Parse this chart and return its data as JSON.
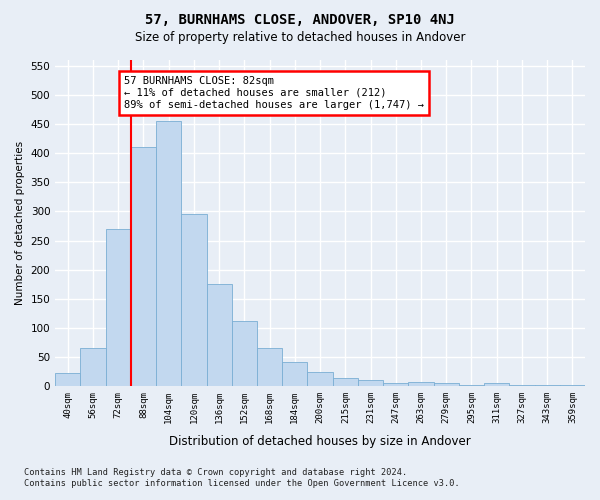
{
  "title": "57, BURNHAMS CLOSE, ANDOVER, SP10 4NJ",
  "subtitle": "Size of property relative to detached houses in Andover",
  "xlabel": "Distribution of detached houses by size in Andover",
  "ylabel": "Number of detached properties",
  "bar_color": "#c2d8ef",
  "bar_edge_color": "#7aaed4",
  "categories": [
    "40sqm",
    "56sqm",
    "72sqm",
    "88sqm",
    "104sqm",
    "120sqm",
    "136sqm",
    "152sqm",
    "168sqm",
    "184sqm",
    "200sqm",
    "215sqm",
    "231sqm",
    "247sqm",
    "263sqm",
    "279sqm",
    "295sqm",
    "311sqm",
    "327sqm",
    "343sqm",
    "359sqm"
  ],
  "values": [
    22,
    65,
    270,
    410,
    455,
    295,
    175,
    112,
    65,
    42,
    25,
    14,
    10,
    6,
    7,
    5,
    3,
    5,
    3,
    2,
    2
  ],
  "ylim": [
    0,
    560
  ],
  "yticks": [
    0,
    50,
    100,
    150,
    200,
    250,
    300,
    350,
    400,
    450,
    500,
    550
  ],
  "red_line_x": 3.0,
  "annotation_line1": "57 BURNHAMS CLOSE: 82sqm",
  "annotation_line2": "← 11% of detached houses are smaller (212)",
  "annotation_line3": "89% of semi-detached houses are larger (1,747) →",
  "footer_line1": "Contains HM Land Registry data © Crown copyright and database right 2024.",
  "footer_line2": "Contains public sector information licensed under the Open Government Licence v3.0.",
  "background_color": "#e8eef6",
  "grid_color": "#ffffff"
}
